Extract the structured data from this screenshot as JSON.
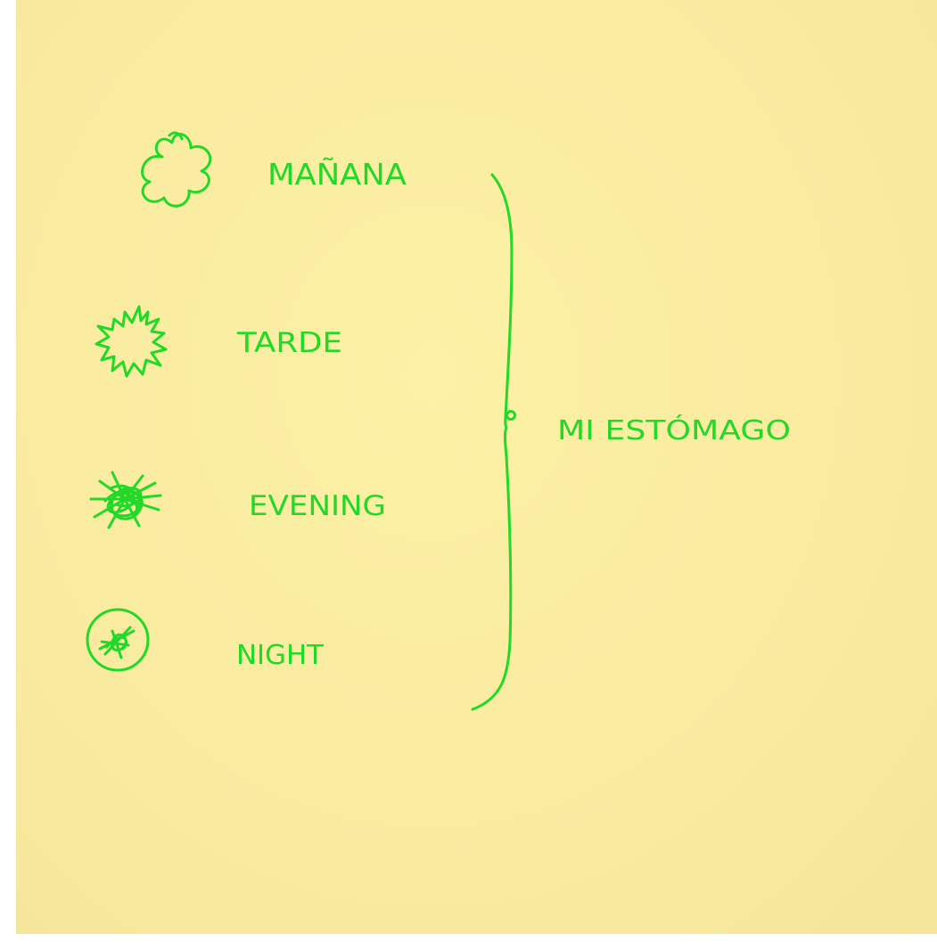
{
  "labels": {
    "morning": "MAÑANA",
    "afternoon": "TARDE",
    "evening": "EVENING",
    "night": "NIGHT",
    "target": "MI ESTÓMAGO"
  },
  "colors": {
    "ink": "#22d928",
    "paper": "#f9eba0",
    "background": "#ffffff"
  },
  "icons": {
    "morning": "wavy-cloud-icon",
    "afternoon": "spiky-burst-icon",
    "evening": "scribbled-star-icon",
    "night": "circled-scribble-icon"
  }
}
